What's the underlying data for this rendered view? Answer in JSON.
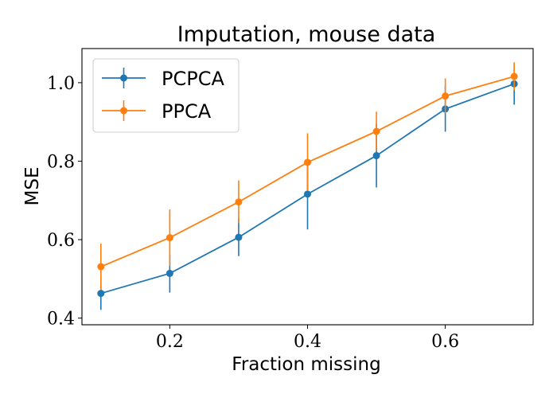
{
  "chart_data": {
    "type": "line",
    "title": "Imputation, mouse data",
    "xlabel": "Fraction missing",
    "ylabel": "MSE",
    "x": [
      0.1,
      0.2,
      0.3,
      0.4,
      0.5,
      0.6,
      0.7
    ],
    "xlim": [
      0.0725,
      0.7275
    ],
    "ylim": [
      0.383,
      1.087
    ],
    "xticks": [
      0.2,
      0.4,
      0.6
    ],
    "xtick_labels": [
      "0.2",
      "0.4",
      "0.6"
    ],
    "yticks": [
      0.4,
      0.6,
      0.8,
      1.0
    ],
    "ytick_labels": [
      "0.4",
      "0.6",
      "0.8",
      "1.0"
    ],
    "grid": false,
    "legend_position": "top-left",
    "series": [
      {
        "name": "PCPCA",
        "color": "#1f77b4",
        "values": [
          0.463,
          0.514,
          0.606,
          0.716,
          0.814,
          0.933,
          0.997
        ],
        "err_low": [
          0.421,
          0.465,
          0.558,
          0.626,
          0.733,
          0.875,
          0.944
        ],
        "err_high": [
          0.505,
          0.561,
          0.654,
          0.806,
          0.895,
          0.991,
          1.048
        ]
      },
      {
        "name": "PPCA",
        "color": "#ff7f0e",
        "values": [
          0.531,
          0.605,
          0.696,
          0.797,
          0.876,
          0.966,
          1.016
        ],
        "err_low": [
          0.472,
          0.533,
          0.642,
          0.724,
          0.826,
          0.922,
          0.981
        ],
        "err_high": [
          0.59,
          0.677,
          0.751,
          0.871,
          0.926,
          1.011,
          1.052
        ]
      }
    ]
  }
}
